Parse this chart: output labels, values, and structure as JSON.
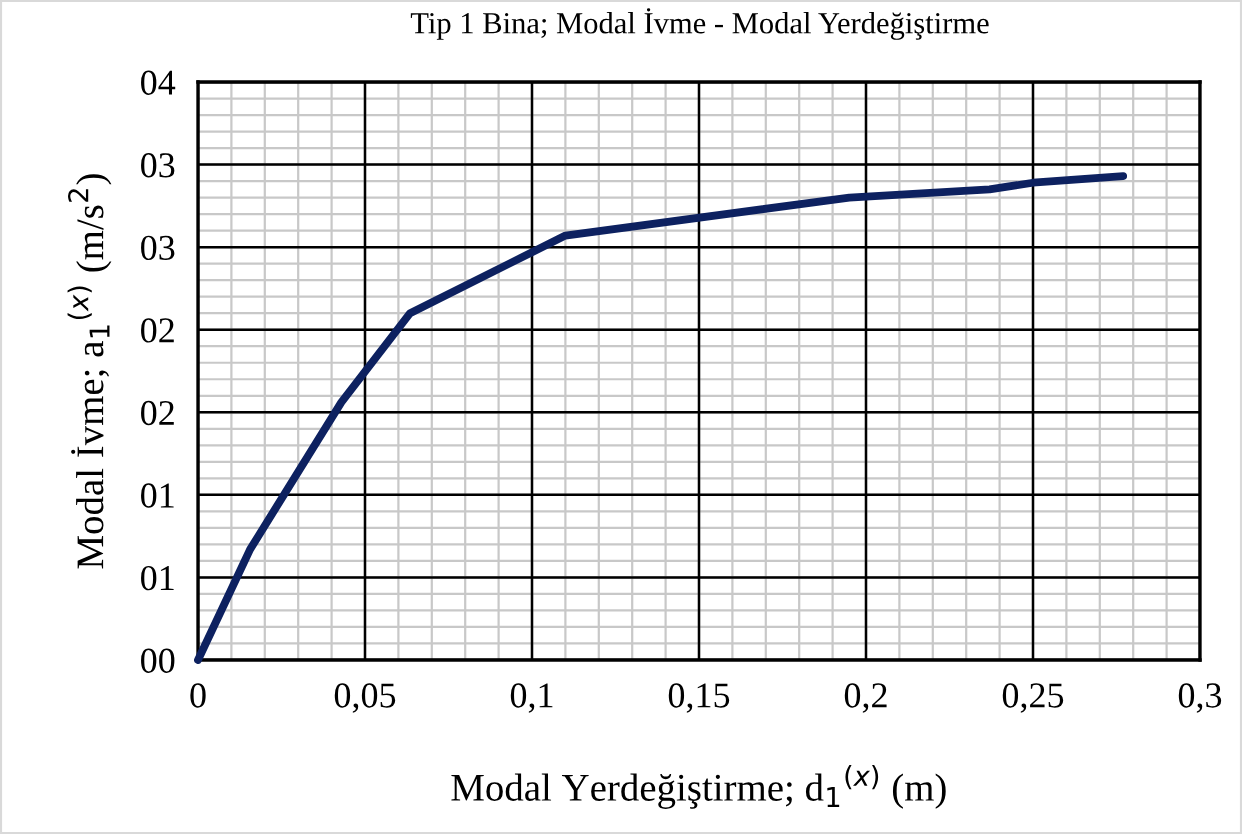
{
  "chart_data": {
    "type": "line",
    "title": "Tip 1 Bina; Modal İvme - Modal Yerdeğiştirme",
    "xlabel": "Modal Yerdeğiştirme; d$_{1}$$^{(x)}$ (m)",
    "ylabel": "Modal İvme; a$_{1}$$^{(x)}$ (m/s$^{2}$)",
    "x": [
      0,
      0.0156,
      0.0429,
      0.0635,
      0.11,
      0.195,
      0.237,
      0.25,
      0.277
    ],
    "series": [
      {
        "color": "#0d2160",
        "values": [
          0,
          0.67,
          1.56,
          2.1,
          2.57,
          2.8,
          2.85,
          2.89,
          2.93
        ]
      }
    ],
    "xlim": [
      0,
      0.3
    ],
    "xticks": [
      0,
      {
        "value": 0.05,
        "label": "0,05"
      },
      {
        "value": 0.1,
        "label": "0,1"
      },
      {
        "value": 0.15,
        "label": "0,15"
      },
      {
        "value": 0.2,
        "label": "0,2"
      },
      {
        "value": 0.25,
        "label": "0,25"
      },
      {
        "value": 0.3,
        "label": "0,3"
      }
    ],
    "ylim": [
      0,
      3.5
    ],
    "yticks": [
      {
        "value": 0,
        "label": "00"
      },
      {
        "value": 0.5,
        "label": "01"
      },
      {
        "value": 1,
        "label": "01"
      },
      {
        "value": 1.5,
        "label": "02"
      },
      {
        "value": 2,
        "label": "02"
      },
      {
        "value": 2.5,
        "label": "03"
      },
      {
        "value": 3,
        "label": "03"
      },
      {
        "value": 3.5,
        "label": "04"
      }
    ],
    "grid": true,
    "legend": false,
    "marker": "none",
    "line_style": "solid"
  }
}
